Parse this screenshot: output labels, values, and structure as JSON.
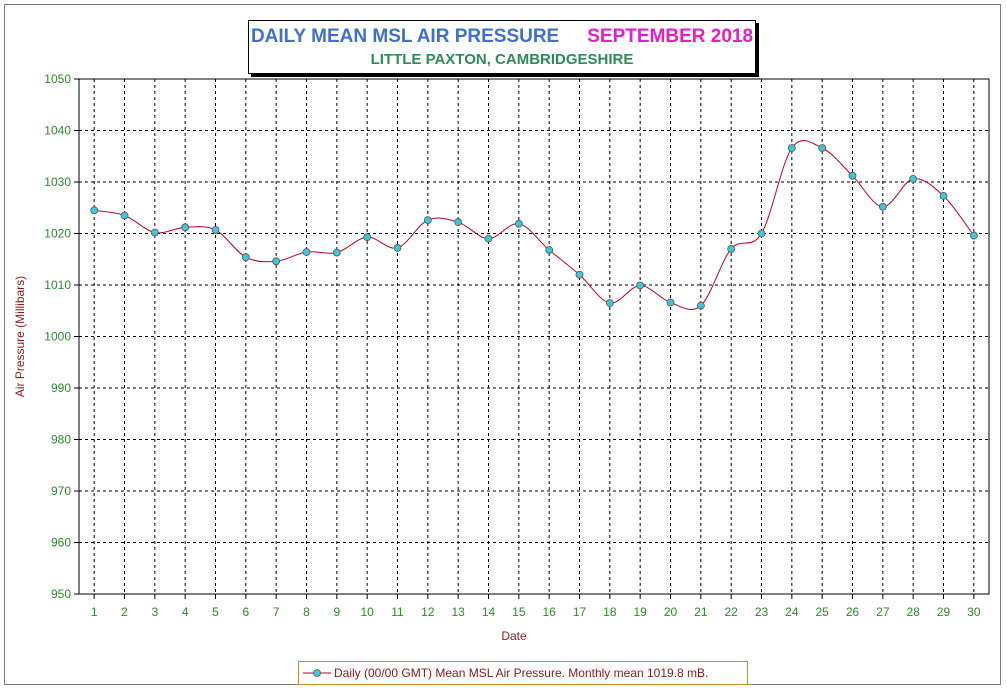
{
  "title": {
    "main": "DAILY MEAN MSL AIR PRESSURE",
    "month": "SEPTEMBER 2018",
    "subtitle": "LITTLE PAXTON, CAMBRIDGESHIRE"
  },
  "colors": {
    "title_main": "#3f6fd4",
    "title_month": "#e41ec8",
    "subtitle": "#2e8b57",
    "tick_labels": "#2e8b2e",
    "axis_labels": "#8b1a1a",
    "line": "#c0002a",
    "marker": "#3cc8d8"
  },
  "legend": {
    "label": "Daily (00/00 GMT) Mean MSL Air Pressure. Monthly mean 1019.8 mB."
  },
  "chart_data": {
    "type": "line",
    "xlabel": "Date",
    "ylabel": "Air Pressure (Millibars)",
    "ylim": [
      950,
      1050
    ],
    "ytick_step": 10,
    "x": [
      1,
      2,
      3,
      4,
      5,
      6,
      7,
      8,
      9,
      10,
      11,
      12,
      13,
      14,
      15,
      16,
      17,
      18,
      19,
      20,
      21,
      22,
      23,
      24,
      25,
      26,
      27,
      28,
      29,
      30
    ],
    "series": [
      {
        "name": "Daily (00/00 GMT) Mean MSL Air Pressure. Monthly mean 1019.8 mB.",
        "values": [
          1024.5,
          1023.5,
          1020.2,
          1021.2,
          1020.7,
          1015.4,
          1014.6,
          1016.4,
          1016.3,
          1019.3,
          1017.2,
          1022.6,
          1022.2,
          1019.0,
          1021.9,
          1016.8,
          1012.0,
          1006.5,
          1009.9,
          1006.6,
          1006.0,
          1017.0,
          1020.0,
          1036.6,
          1036.6,
          1031.2,
          1025.2,
          1030.6,
          1027.3,
          1019.6
        ]
      }
    ],
    "grid": true,
    "legend_position": "bottom-center"
  }
}
